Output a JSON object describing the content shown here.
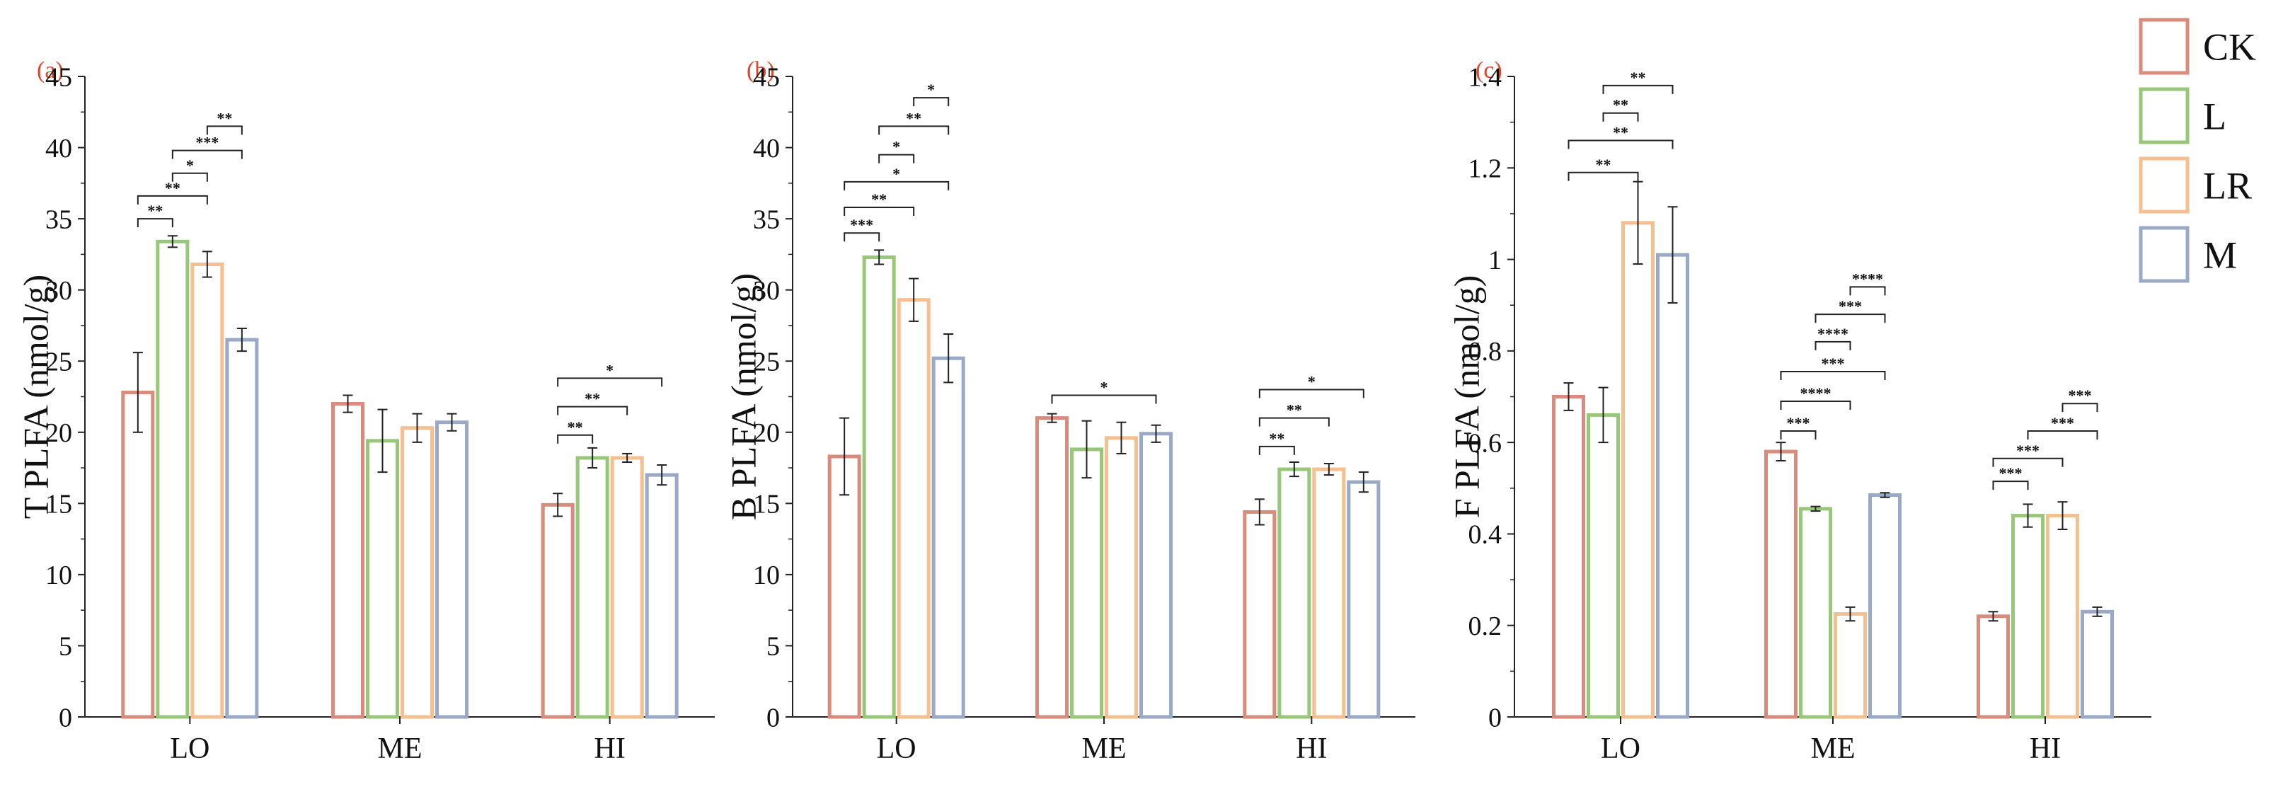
{
  "legend": {
    "entries": [
      {
        "name": "CK",
        "color": "#d98b7c"
      },
      {
        "name": "L",
        "color": "#98c77a"
      },
      {
        "name": "LR",
        "color": "#f6bf8f"
      },
      {
        "name": "M",
        "color": "#99a9c6"
      }
    ]
  },
  "chart_data": [
    {
      "type": "bar",
      "panel": "(a)",
      "ylabel": "T PLFA (nmol/g)",
      "xlabel": "",
      "ylim": [
        0,
        45
      ],
      "yticks": [
        "0",
        "5",
        "10",
        "15",
        "20",
        "25",
        "30",
        "35",
        "40",
        "45"
      ],
      "categories": [
        "LO",
        "ME",
        "HI"
      ],
      "series": [
        {
          "name": "CK",
          "values": [
            22.8,
            22.0,
            14.9
          ],
          "errors": [
            2.8,
            0.6,
            0.8
          ]
        },
        {
          "name": "L",
          "values": [
            33.4,
            19.4,
            18.2
          ],
          "errors": [
            0.4,
            2.2,
            0.7
          ]
        },
        {
          "name": "LR",
          "values": [
            31.8,
            20.3,
            18.2
          ],
          "errors": [
            0.9,
            1.0,
            0.3
          ]
        },
        {
          "name": "M",
          "values": [
            26.5,
            20.7,
            17.0
          ],
          "errors": [
            0.8,
            0.6,
            0.7
          ]
        }
      ],
      "significance": [
        {
          "category": "LO",
          "from": 0,
          "to": 1,
          "label": "**",
          "y": 35.0
        },
        {
          "category": "LO",
          "from": 0,
          "to": 2,
          "label": "**",
          "y": 36.6
        },
        {
          "category": "LO",
          "from": 1,
          "to": 2,
          "label": "*",
          "y": 38.2
        },
        {
          "category": "LO",
          "from": 1,
          "to": 3,
          "label": "***",
          "y": 39.8
        },
        {
          "category": "LO",
          "from": 2,
          "to": 3,
          "label": "**",
          "y": 41.5
        },
        {
          "category": "HI",
          "from": 0,
          "to": 1,
          "label": "**",
          "y": 19.8
        },
        {
          "category": "HI",
          "from": 0,
          "to": 2,
          "label": "**",
          "y": 21.8
        },
        {
          "category": "HI",
          "from": 0,
          "to": 3,
          "label": "*",
          "y": 23.8
        }
      ]
    },
    {
      "type": "bar",
      "panel": "(b)",
      "ylabel": "B PLFA (nmol/g)",
      "xlabel": "",
      "ylim": [
        0,
        45
      ],
      "yticks": [
        "0",
        "5",
        "10",
        "15",
        "20",
        "25",
        "30",
        "35",
        "40",
        "45"
      ],
      "categories": [
        "LO",
        "ME",
        "HI"
      ],
      "series": [
        {
          "name": "CK",
          "values": [
            18.3,
            21.0,
            14.4
          ],
          "errors": [
            2.7,
            0.3,
            0.9
          ]
        },
        {
          "name": "L",
          "values": [
            32.3,
            18.8,
            17.4
          ],
          "errors": [
            0.5,
            2.0,
            0.5
          ]
        },
        {
          "name": "LR",
          "values": [
            29.3,
            19.6,
            17.4
          ],
          "errors": [
            1.5,
            1.1,
            0.4
          ]
        },
        {
          "name": "M",
          "values": [
            25.2,
            19.9,
            16.5
          ],
          "errors": [
            1.7,
            0.6,
            0.7
          ]
        }
      ],
      "significance": [
        {
          "category": "LO",
          "from": 0,
          "to": 1,
          "label": "***",
          "y": 34.0
        },
        {
          "category": "LO",
          "from": 0,
          "to": 2,
          "label": "**",
          "y": 35.8
        },
        {
          "category": "LO",
          "from": 0,
          "to": 3,
          "label": "*",
          "y": 37.6
        },
        {
          "category": "LO",
          "from": 1,
          "to": 2,
          "label": "*",
          "y": 39.5
        },
        {
          "category": "LO",
          "from": 1,
          "to": 3,
          "label": "**",
          "y": 41.5
        },
        {
          "category": "LO",
          "from": 2,
          "to": 3,
          "label": "*",
          "y": 43.5
        },
        {
          "category": "ME",
          "from": 0,
          "to": 3,
          "label": "*",
          "y": 22.6
        },
        {
          "category": "HI",
          "from": 0,
          "to": 1,
          "label": "**",
          "y": 19.0
        },
        {
          "category": "HI",
          "from": 0,
          "to": 2,
          "label": "**",
          "y": 21.0
        },
        {
          "category": "HI",
          "from": 0,
          "to": 3,
          "label": "*",
          "y": 23.0
        }
      ]
    },
    {
      "type": "bar",
      "panel": "(c)",
      "ylabel": "F PLFA (nmol/g)",
      "xlabel": "",
      "ylim": [
        0,
        1.4
      ],
      "yticks": [
        "0",
        "0.2",
        "0.4",
        "0.6",
        "0.8",
        "1",
        "1.2",
        "1.4"
      ],
      "categories": [
        "LO",
        "ME",
        "HI"
      ],
      "series": [
        {
          "name": "CK",
          "values": [
            0.7,
            0.58,
            0.22
          ],
          "errors": [
            0.03,
            0.02,
            0.01
          ]
        },
        {
          "name": "L",
          "values": [
            0.66,
            0.455,
            0.44
          ],
          "errors": [
            0.06,
            0.005,
            0.025
          ]
        },
        {
          "name": "LR",
          "values": [
            1.08,
            0.225,
            0.44
          ],
          "errors": [
            0.09,
            0.015,
            0.03
          ]
        },
        {
          "name": "M",
          "values": [
            1.01,
            0.485,
            0.23
          ],
          "errors": [
            0.105,
            0.005,
            0.01
          ]
        }
      ],
      "significance": [
        {
          "category": "LO",
          "from": 0,
          "to": 2,
          "label": "**",
          "y": 1.19
        },
        {
          "category": "LO",
          "from": 0,
          "to": 3,
          "label": "**",
          "y": 1.26
        },
        {
          "category": "LO",
          "from": 1,
          "to": 2,
          "label": "**",
          "y": 1.32
        },
        {
          "category": "LO",
          "from": 1,
          "to": 3,
          "label": "**",
          "y": 1.38
        },
        {
          "category": "ME",
          "from": 0,
          "to": 1,
          "label": "***",
          "y": 0.625
        },
        {
          "category": "ME",
          "from": 0,
          "to": 2,
          "label": "****",
          "y": 0.69
        },
        {
          "category": "ME",
          "from": 0,
          "to": 3,
          "label": "***",
          "y": 0.755
        },
        {
          "category": "ME",
          "from": 1,
          "to": 2,
          "label": "****",
          "y": 0.82
        },
        {
          "category": "ME",
          "from": 1,
          "to": 3,
          "label": "***",
          "y": 0.88
        },
        {
          "category": "ME",
          "from": 2,
          "to": 3,
          "label": "****",
          "y": 0.94
        },
        {
          "category": "HI",
          "from": 0,
          "to": 1,
          "label": "***",
          "y": 0.515
        },
        {
          "category": "HI",
          "from": 0,
          "to": 2,
          "label": "***",
          "y": 0.565
        },
        {
          "category": "HI",
          "from": 1,
          "to": 3,
          "label": "***",
          "y": 0.625
        },
        {
          "category": "HI",
          "from": 2,
          "to": 3,
          "label": "***",
          "y": 0.685
        }
      ]
    }
  ]
}
